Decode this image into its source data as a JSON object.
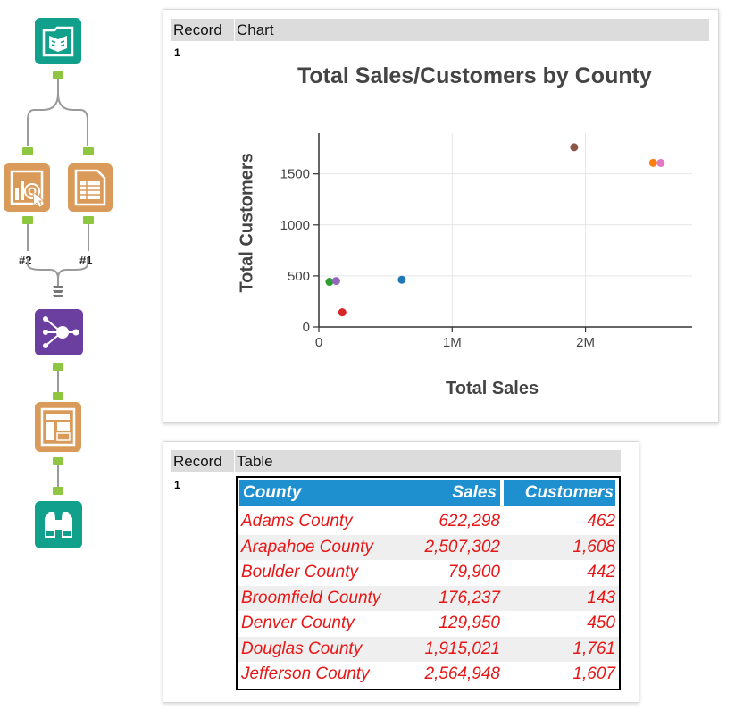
{
  "workflow": {
    "tools": [
      {
        "name": "input-data-tool-icon",
        "color": "#10a08b"
      },
      {
        "name": "browse-interactive-chart-tool-icon",
        "color": "#d99a5a"
      },
      {
        "name": "table-tool-icon",
        "color": "#d99a5a"
      },
      {
        "name": "layout-tool-icon",
        "color": "#6b3fa0"
      },
      {
        "name": "render-report-tool-icon",
        "color": "#d99a5a"
      },
      {
        "name": "browse-tool-icon",
        "color": "#10a08b"
      }
    ],
    "connection_labels": [
      "#2",
      "#1"
    ]
  },
  "chart_panel": {
    "header": {
      "record": "Record",
      "column": "Chart"
    },
    "record_number": "1"
  },
  "table_panel": {
    "header": {
      "record": "Record",
      "column": "Table"
    },
    "record_number": "1",
    "columns": [
      "County",
      "Sales",
      "Customers"
    ],
    "rows": [
      {
        "county": "Adams County",
        "sales": "622,298",
        "customers": "462"
      },
      {
        "county": "Arapahoe County",
        "sales": "2,507,302",
        "customers": "1,608"
      },
      {
        "county": "Boulder County",
        "sales": "79,900",
        "customers": "442"
      },
      {
        "county": "Broomfield County",
        "sales": "176,237",
        "customers": "143"
      },
      {
        "county": "Denver County",
        "sales": "129,950",
        "customers": "450"
      },
      {
        "county": "Douglas County",
        "sales": "1,915,021",
        "customers": "1,761"
      },
      {
        "county": "Jefferson County",
        "sales": "2,564,948",
        "customers": "1,607"
      }
    ],
    "header_color": "#1e90cf",
    "text_color": "#e81616"
  },
  "chart_data": {
    "type": "scatter",
    "title": "Total Sales/Customers by County",
    "xlabel": "Total Sales",
    "ylabel": "Total Customers",
    "xlim": [
      0,
      2800000
    ],
    "ylim": [
      0,
      1900
    ],
    "xticks": [
      0,
      1000000,
      2000000
    ],
    "xtick_labels": [
      "0",
      "1M",
      "2M"
    ],
    "yticks": [
      0,
      500,
      1000,
      1500
    ],
    "ytick_labels": [
      "0",
      "500",
      "1000",
      "1500"
    ],
    "grid": true,
    "points": [
      {
        "x": 622298,
        "y": 462,
        "color": "#1f77b4"
      },
      {
        "x": 2507302,
        "y": 1608,
        "color": "#ff7f0e"
      },
      {
        "x": 79900,
        "y": 442,
        "color": "#2ca02c"
      },
      {
        "x": 176237,
        "y": 143,
        "color": "#d62728"
      },
      {
        "x": 129950,
        "y": 450,
        "color": "#9467bd"
      },
      {
        "x": 1915021,
        "y": 1761,
        "color": "#8c564b"
      },
      {
        "x": 2564948,
        "y": 1607,
        "color": "#e377c2"
      }
    ]
  }
}
